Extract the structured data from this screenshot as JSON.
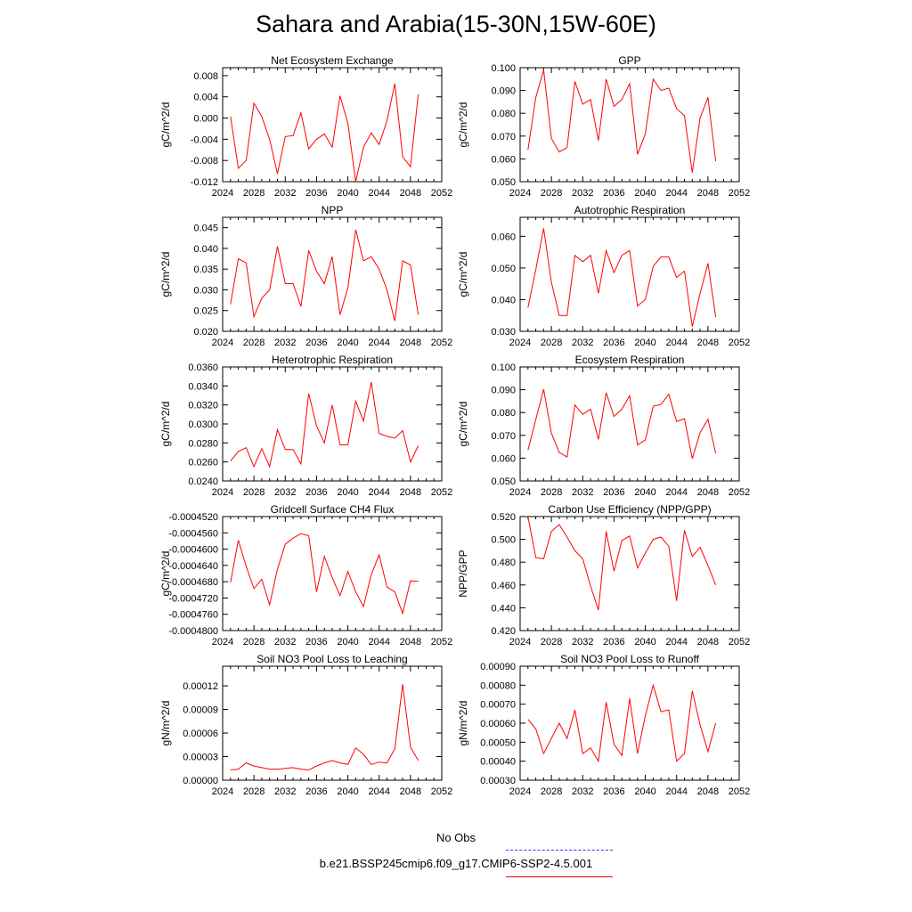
{
  "page_title": "Sahara and Arabia(15-30N,15W-60E)",
  "legend": {
    "obs_label": "No Obs",
    "obs_color": "#3333ff",
    "model_label": "b.e21.BSSP245cmip6.f09_g17.CMIP6-SSP2-4.5.001",
    "model_color": "#ff0000"
  },
  "chart_data": [
    {
      "type": "line",
      "title": "Net Ecosystem Exchange",
      "ylabel": "gC/m^2/d",
      "xlabel": "",
      "xlim": [
        2024,
        2052
      ],
      "x_ticks": [
        "2024",
        "2028",
        "2032",
        "2036",
        "2040",
        "2044",
        "2048",
        "2052"
      ],
      "ylim": [
        -0.012,
        0.0095
      ],
      "y_ticks": [
        "-0.012",
        "-0.008",
        "-0.004",
        "0.000",
        "0.004",
        "0.008"
      ],
      "grid": false,
      "series": [
        {
          "color": "#ff0000",
          "x": [
            2025,
            2026,
            2027,
            2028,
            2029,
            2030,
            2031,
            2032,
            2033,
            2034,
            2035,
            2036,
            2037,
            2038,
            2039,
            2040,
            2041,
            2042,
            2043,
            2044,
            2045,
            2046,
            2047,
            2048,
            2049
          ],
          "values": [
            0.0003,
            -0.0095,
            -0.008,
            0.0028,
            0.0003,
            -0.004,
            -0.0105,
            -0.0035,
            -0.0033,
            0.001,
            -0.0058,
            -0.004,
            -0.003,
            -0.0055,
            0.0042,
            -0.001,
            -0.012,
            -0.0055,
            -0.0028,
            -0.005,
            -0.0005,
            0.0065,
            -0.0073,
            -0.0092,
            0.0045
          ]
        }
      ]
    },
    {
      "type": "line",
      "title": "GPP",
      "ylabel": "gC/m^2/d",
      "xlabel": "",
      "xlim": [
        2024,
        2052
      ],
      "x_ticks": [
        "2024",
        "2028",
        "2032",
        "2036",
        "2040",
        "2044",
        "2048",
        "2052"
      ],
      "ylim": [
        0.05,
        0.1
      ],
      "y_ticks": [
        "0.050",
        "0.060",
        "0.070",
        "0.080",
        "0.090",
        "0.100"
      ],
      "grid": false,
      "series": [
        {
          "color": "#ff0000",
          "x": [
            2025,
            2026,
            2027,
            2028,
            2029,
            2030,
            2031,
            2032,
            2033,
            2034,
            2035,
            2036,
            2037,
            2038,
            2039,
            2040,
            2041,
            2042,
            2043,
            2044,
            2045,
            2046,
            2047,
            2048,
            2049
          ],
          "values": [
            0.064,
            0.087,
            0.099,
            0.069,
            0.063,
            0.065,
            0.094,
            0.084,
            0.086,
            0.068,
            0.095,
            0.083,
            0.086,
            0.093,
            0.062,
            0.071,
            0.095,
            0.09,
            0.091,
            0.082,
            0.079,
            0.054,
            0.078,
            0.087,
            0.059
          ]
        }
      ]
    },
    {
      "type": "line",
      "title": "NPP",
      "ylabel": "gC/m^2/d",
      "xlabel": "",
      "xlim": [
        2024,
        2052
      ],
      "x_ticks": [
        "2024",
        "2028",
        "2032",
        "2036",
        "2040",
        "2044",
        "2048",
        "2052"
      ],
      "ylim": [
        0.02,
        0.0475
      ],
      "y_ticks": [
        "0.020",
        "0.025",
        "0.030",
        "0.035",
        "0.040",
        "0.045"
      ],
      "grid": false,
      "series": [
        {
          "color": "#ff0000",
          "x": [
            2025,
            2026,
            2027,
            2028,
            2029,
            2030,
            2031,
            2032,
            2033,
            2034,
            2035,
            2036,
            2037,
            2038,
            2039,
            2040,
            2041,
            2042,
            2043,
            2044,
            2045,
            2046,
            2047,
            2048,
            2049
          ],
          "values": [
            0.0265,
            0.0375,
            0.0365,
            0.0235,
            0.028,
            0.03,
            0.0405,
            0.0315,
            0.0315,
            0.026,
            0.0395,
            0.0345,
            0.0315,
            0.038,
            0.024,
            0.0305,
            0.0445,
            0.037,
            0.038,
            0.035,
            0.03,
            0.0225,
            0.037,
            0.036,
            0.024
          ]
        }
      ]
    },
    {
      "type": "line",
      "title": "Autotrophic Respiration",
      "ylabel": "gC/m^2/d",
      "xlabel": "",
      "xlim": [
        2024,
        2052
      ],
      "x_ticks": [
        "2024",
        "2028",
        "2032",
        "2036",
        "2040",
        "2044",
        "2048",
        "2052"
      ],
      "ylim": [
        0.03,
        0.066
      ],
      "y_ticks": [
        "0.030",
        "0.040",
        "0.050",
        "0.060"
      ],
      "grid": false,
      "series": [
        {
          "color": "#ff0000",
          "x": [
            2025,
            2026,
            2027,
            2028,
            2029,
            2030,
            2031,
            2032,
            2033,
            2034,
            2035,
            2036,
            2037,
            2038,
            2039,
            2040,
            2041,
            2042,
            2043,
            2044,
            2045,
            2046,
            2047,
            2048,
            2049
          ],
          "values": [
            0.0375,
            0.0495,
            0.0625,
            0.0455,
            0.035,
            0.035,
            0.054,
            0.052,
            0.054,
            0.042,
            0.0555,
            0.0485,
            0.054,
            0.0555,
            0.038,
            0.04,
            0.0505,
            0.0535,
            0.0535,
            0.047,
            0.049,
            0.0315,
            0.042,
            0.0515,
            0.0345
          ]
        }
      ]
    },
    {
      "type": "line",
      "title": "Heterotrophic Respiration",
      "ylabel": "gC/m^2/d",
      "xlabel": "",
      "xlim": [
        2024,
        2052
      ],
      "x_ticks": [
        "2024",
        "2028",
        "2032",
        "2036",
        "2040",
        "2044",
        "2048",
        "2052"
      ],
      "ylim": [
        0.024,
        0.036
      ],
      "y_ticks": [
        "0.0240",
        "0.0260",
        "0.0280",
        "0.0300",
        "0.0320",
        "0.0340",
        "0.0360"
      ],
      "grid": false,
      "series": [
        {
          "color": "#ff0000",
          "x": [
            2025,
            2026,
            2027,
            2028,
            2029,
            2030,
            2031,
            2032,
            2033,
            2034,
            2035,
            2036,
            2037,
            2038,
            2039,
            2040,
            2041,
            2042,
            2043,
            2044,
            2045,
            2046,
            2047,
            2048,
            2049
          ],
          "values": [
            0.0261,
            0.0271,
            0.0275,
            0.0255,
            0.0274,
            0.0255,
            0.0294,
            0.0273,
            0.0273,
            0.0258,
            0.0332,
            0.0298,
            0.028,
            0.032,
            0.0278,
            0.0278,
            0.0324,
            0.0303,
            0.0344,
            0.029,
            0.0287,
            0.0285,
            0.0293,
            0.026,
            0.0277
          ]
        }
      ]
    },
    {
      "type": "line",
      "title": "Ecosystem Respiration",
      "ylabel": "gC/m^2/d",
      "xlabel": "",
      "xlim": [
        2024,
        2052
      ],
      "x_ticks": [
        "2024",
        "2028",
        "2032",
        "2036",
        "2040",
        "2044",
        "2048",
        "2052"
      ],
      "ylim": [
        0.05,
        0.1
      ],
      "y_ticks": [
        "0.050",
        "0.060",
        "0.070",
        "0.080",
        "0.090",
        "0.100"
      ],
      "grid": false,
      "series": [
        {
          "color": "#ff0000",
          "x": [
            2025,
            2026,
            2027,
            2028,
            2029,
            2030,
            2031,
            2032,
            2033,
            2034,
            2035,
            2036,
            2037,
            2038,
            2039,
            2040,
            2041,
            2042,
            2043,
            2044,
            2045,
            2046,
            2047,
            2048,
            2049
          ],
          "values": [
            0.0635,
            0.077,
            0.0902,
            0.071,
            0.0625,
            0.0605,
            0.0833,
            0.0792,
            0.0815,
            0.0682,
            0.0887,
            0.0783,
            0.0815,
            0.0874,
            0.0658,
            0.068,
            0.0828,
            0.0835,
            0.088,
            0.076,
            0.0773,
            0.0598,
            0.0712,
            0.0771,
            0.0622
          ]
        }
      ]
    },
    {
      "type": "line",
      "title": "Gridcell Surface CH4 Flux",
      "ylabel": "gC/m^2/d",
      "xlabel": "",
      "xlim": [
        2024,
        2052
      ],
      "x_ticks": [
        "2024",
        "2028",
        "2032",
        "2036",
        "2040",
        "2044",
        "2048",
        "2052"
      ],
      "ylim": [
        -0.00048,
        -0.000452
      ],
      "y_ticks": [
        "-0.0004800",
        "-0.0004760",
        "-0.0004720",
        "-0.0004680",
        "-0.0004640",
        "-0.0004600",
        "-0.0004560",
        "-0.0004520"
      ],
      "grid": false,
      "series": [
        {
          "color": "#ff0000",
          "x": [
            2025,
            2026,
            2027,
            2028,
            2029,
            2030,
            2031,
            2032,
            2033,
            2034,
            2035,
            2036,
            2037,
            2038,
            2039,
            2040,
            2041,
            2042,
            2043,
            2044,
            2045,
            2046,
            2047,
            2048,
            2049
          ],
          "values": [
            -0.0004682,
            -0.0004578,
            -0.0004642,
            -0.0004697,
            -0.0004674,
            -0.0004737,
            -0.0004649,
            -0.0004588,
            -0.0004573,
            -0.0004562,
            -0.0004567,
            -0.0004705,
            -0.0004618,
            -0.000467,
            -0.0004714,
            -0.0004655,
            -0.0004705,
            -0.0004741,
            -0.0004662,
            -0.0004614,
            -0.0004693,
            -0.0004705,
            -0.0004758,
            -0.0004678,
            -0.0004679
          ]
        }
      ]
    },
    {
      "type": "line",
      "title": "Carbon Use Efficiency (NPP/GPP)",
      "ylabel": "NPP/GPP",
      "xlabel": "",
      "xlim": [
        2024,
        2052
      ],
      "x_ticks": [
        "2024",
        "2028",
        "2032",
        "2036",
        "2040",
        "2044",
        "2048",
        "2052"
      ],
      "ylim": [
        0.42,
        0.52
      ],
      "y_ticks": [
        "0.420",
        "0.440",
        "0.460",
        "0.480",
        "0.500",
        "0.520"
      ],
      "grid": false,
      "series": [
        {
          "color": "#ff0000",
          "x": [
            2025,
            2026,
            2027,
            2028,
            2029,
            2030,
            2031,
            2032,
            2033,
            2034,
            2035,
            2036,
            2037,
            2038,
            2039,
            2040,
            2041,
            2042,
            2043,
            2044,
            2045,
            2046,
            2047,
            2048,
            2049
          ],
          "values": [
            0.52,
            0.484,
            0.483,
            0.507,
            0.513,
            0.502,
            0.49,
            0.483,
            0.459,
            0.438,
            0.507,
            0.472,
            0.499,
            0.503,
            0.475,
            0.488,
            0.5,
            0.502,
            0.494,
            0.446,
            0.508,
            0.485,
            0.493,
            0.477,
            0.46
          ]
        }
      ]
    },
    {
      "type": "line",
      "title": "Soil NO3 Pool Loss to Leaching",
      "ylabel": "gN/m^2/d",
      "xlabel": "",
      "xlim": [
        2024,
        2052
      ],
      "x_ticks": [
        "2024",
        "2028",
        "2032",
        "2036",
        "2040",
        "2044",
        "2048",
        "2052"
      ],
      "ylim": [
        0.0,
        0.000145
      ],
      "y_ticks": [
        "0.00000",
        "0.00003",
        "0.00006",
        "0.00009",
        "0.00012"
      ],
      "grid": false,
      "series": [
        {
          "color": "#ff0000",
          "x": [
            2025,
            2026,
            2027,
            2028,
            2029,
            2030,
            2031,
            2032,
            2033,
            2034,
            2035,
            2036,
            2037,
            2038,
            2039,
            2040,
            2041,
            2042,
            2043,
            2044,
            2045,
            2046,
            2047,
            2048,
            2049
          ],
          "values": [
            1.3e-05,
            1.4e-05,
            2.2e-05,
            1.8e-05,
            1.6e-05,
            1.4e-05,
            1.4e-05,
            1.5e-05,
            1.6e-05,
            1.4e-05,
            1.3e-05,
            1.8e-05,
            2.2e-05,
            2.5e-05,
            2.2e-05,
            2e-05,
            4.1e-05,
            3.3e-05,
            2e-05,
            2.3e-05,
            2.2e-05,
            4e-05,
            0.000122,
            4.2e-05,
            2.5e-05
          ]
        }
      ]
    },
    {
      "type": "line",
      "title": "Soil NO3 Pool Loss to Runoff",
      "ylabel": "gN/m^2/d",
      "xlabel": "",
      "xlim": [
        2024,
        2052
      ],
      "x_ticks": [
        "2024",
        "2028",
        "2032",
        "2036",
        "2040",
        "2044",
        "2048",
        "2052"
      ],
      "ylim": [
        0.0003,
        0.0009
      ],
      "y_ticks": [
        "0.00030",
        "0.00040",
        "0.00050",
        "0.00060",
        "0.00070",
        "0.00080",
        "0.00090"
      ],
      "grid": false,
      "series": [
        {
          "color": "#ff0000",
          "x": [
            2025,
            2026,
            2027,
            2028,
            2029,
            2030,
            2031,
            2032,
            2033,
            2034,
            2035,
            2036,
            2037,
            2038,
            2039,
            2040,
            2041,
            2042,
            2043,
            2044,
            2045,
            2046,
            2047,
            2048,
            2049
          ],
          "values": [
            0.00062,
            0.00057,
            0.00044,
            0.00052,
            0.0006,
            0.00052,
            0.00067,
            0.00044,
            0.00047,
            0.0004,
            0.00071,
            0.00049,
            0.00043,
            0.00073,
            0.00044,
            0.00064,
            0.0008,
            0.00066,
            0.00067,
            0.0004,
            0.00044,
            0.00077,
            0.00059,
            0.00045,
            0.0006
          ]
        }
      ]
    }
  ]
}
